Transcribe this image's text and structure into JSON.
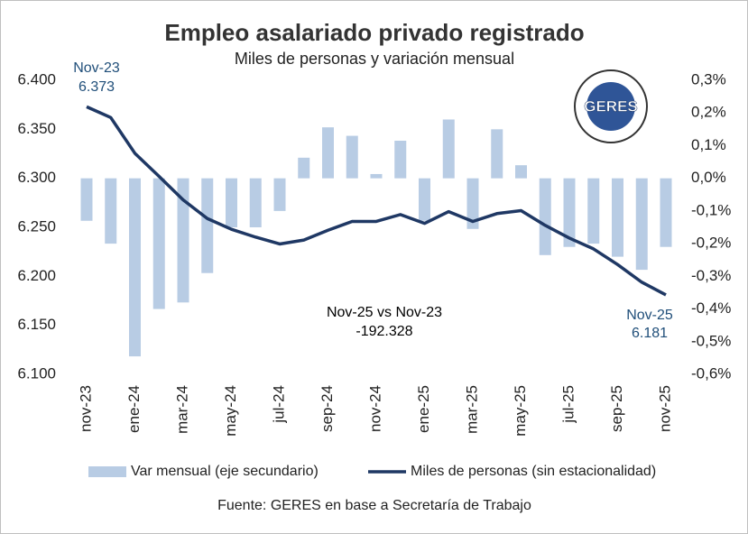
{
  "chart_data": {
    "type": "bar-line",
    "title": "Empleo asalariado privado registrado",
    "subtitle": "Miles de personas y variación mensual",
    "source": "Fuente: GERES en base a Secretaría de Trabajo",
    "logo": "GERES",
    "categories": [
      "nov-23",
      null,
      "ene-24",
      null,
      "mar-24",
      null,
      "may-24",
      null,
      "jul-24",
      null,
      "sep-24",
      null,
      "nov-24",
      null,
      "ene-25",
      null,
      "mar-25",
      null,
      "may-25",
      null,
      "jul-25",
      null,
      "sep-25",
      null,
      "nov-25"
    ],
    "series": [
      {
        "name": "Var mensual (eje secundario)",
        "type": "bar",
        "axis": "y2",
        "color": "#b8cce4",
        "values": [
          -0.13,
          -0.2,
          -0.545,
          -0.4,
          -0.38,
          -0.29,
          -0.15,
          -0.15,
          -0.1,
          0.063,
          0.156,
          0.13,
          0.013,
          0.115,
          -0.13,
          0.18,
          -0.155,
          0.15,
          0.04,
          -0.235,
          -0.21,
          -0.2,
          -0.24,
          -0.28,
          -0.21
        ]
      },
      {
        "name": "Miles de personas (sin estacionalidad)",
        "type": "line",
        "axis": "y",
        "color": "#1f3864",
        "values": [
          6373,
          6362,
          6325.5,
          6302,
          6278,
          6259,
          6248,
          6240,
          6233,
          6237,
          6247,
          6256,
          6256,
          6263,
          6254,
          6266,
          6256,
          6264,
          6267,
          6252,
          6239,
          6228,
          6212,
          6194,
          6181
        ]
      }
    ],
    "ylim": [
      6100,
      6400
    ],
    "yticks": [
      {
        "value": 6100,
        "label": "6.100"
      },
      {
        "value": 6150,
        "label": "6.150"
      },
      {
        "value": 6200,
        "label": "6.200"
      },
      {
        "value": 6250,
        "label": "6.250"
      },
      {
        "value": 6300,
        "label": "6.300"
      },
      {
        "value": 6350,
        "label": "6.350"
      },
      {
        "value": 6400,
        "label": "6.400"
      }
    ],
    "y2lim": [
      -0.6,
      0.3
    ],
    "y2ticks": [
      {
        "value": -0.6,
        "label": "-0,6%"
      },
      {
        "value": -0.5,
        "label": "-0,5%"
      },
      {
        "value": -0.4,
        "label": "-0,4%"
      },
      {
        "value": -0.3,
        "label": "-0,3%"
      },
      {
        "value": -0.2,
        "label": "-0,2%"
      },
      {
        "value": -0.1,
        "label": "-0,1%"
      },
      {
        "value": 0,
        "label": "0,0%"
      },
      {
        "value": 0.1,
        "label": "0,1%"
      },
      {
        "value": 0.2,
        "label": "0,2%"
      },
      {
        "value": 0.3,
        "label": "0,3%"
      }
    ],
    "grid": false,
    "legend": "bottom",
    "annotations": [
      {
        "text": "Nov-23",
        "color": "#1f4e79"
      },
      {
        "text": "6.373",
        "color": "#1f4e79"
      },
      {
        "text": "Nov-25",
        "color": "#1f4e79"
      },
      {
        "text": "6.181",
        "color": "#1f4e79"
      },
      {
        "text": "Nov-25 vs Nov-23",
        "color": "#000000"
      },
      {
        "text": "-192.328",
        "color": "#000000"
      }
    ]
  }
}
